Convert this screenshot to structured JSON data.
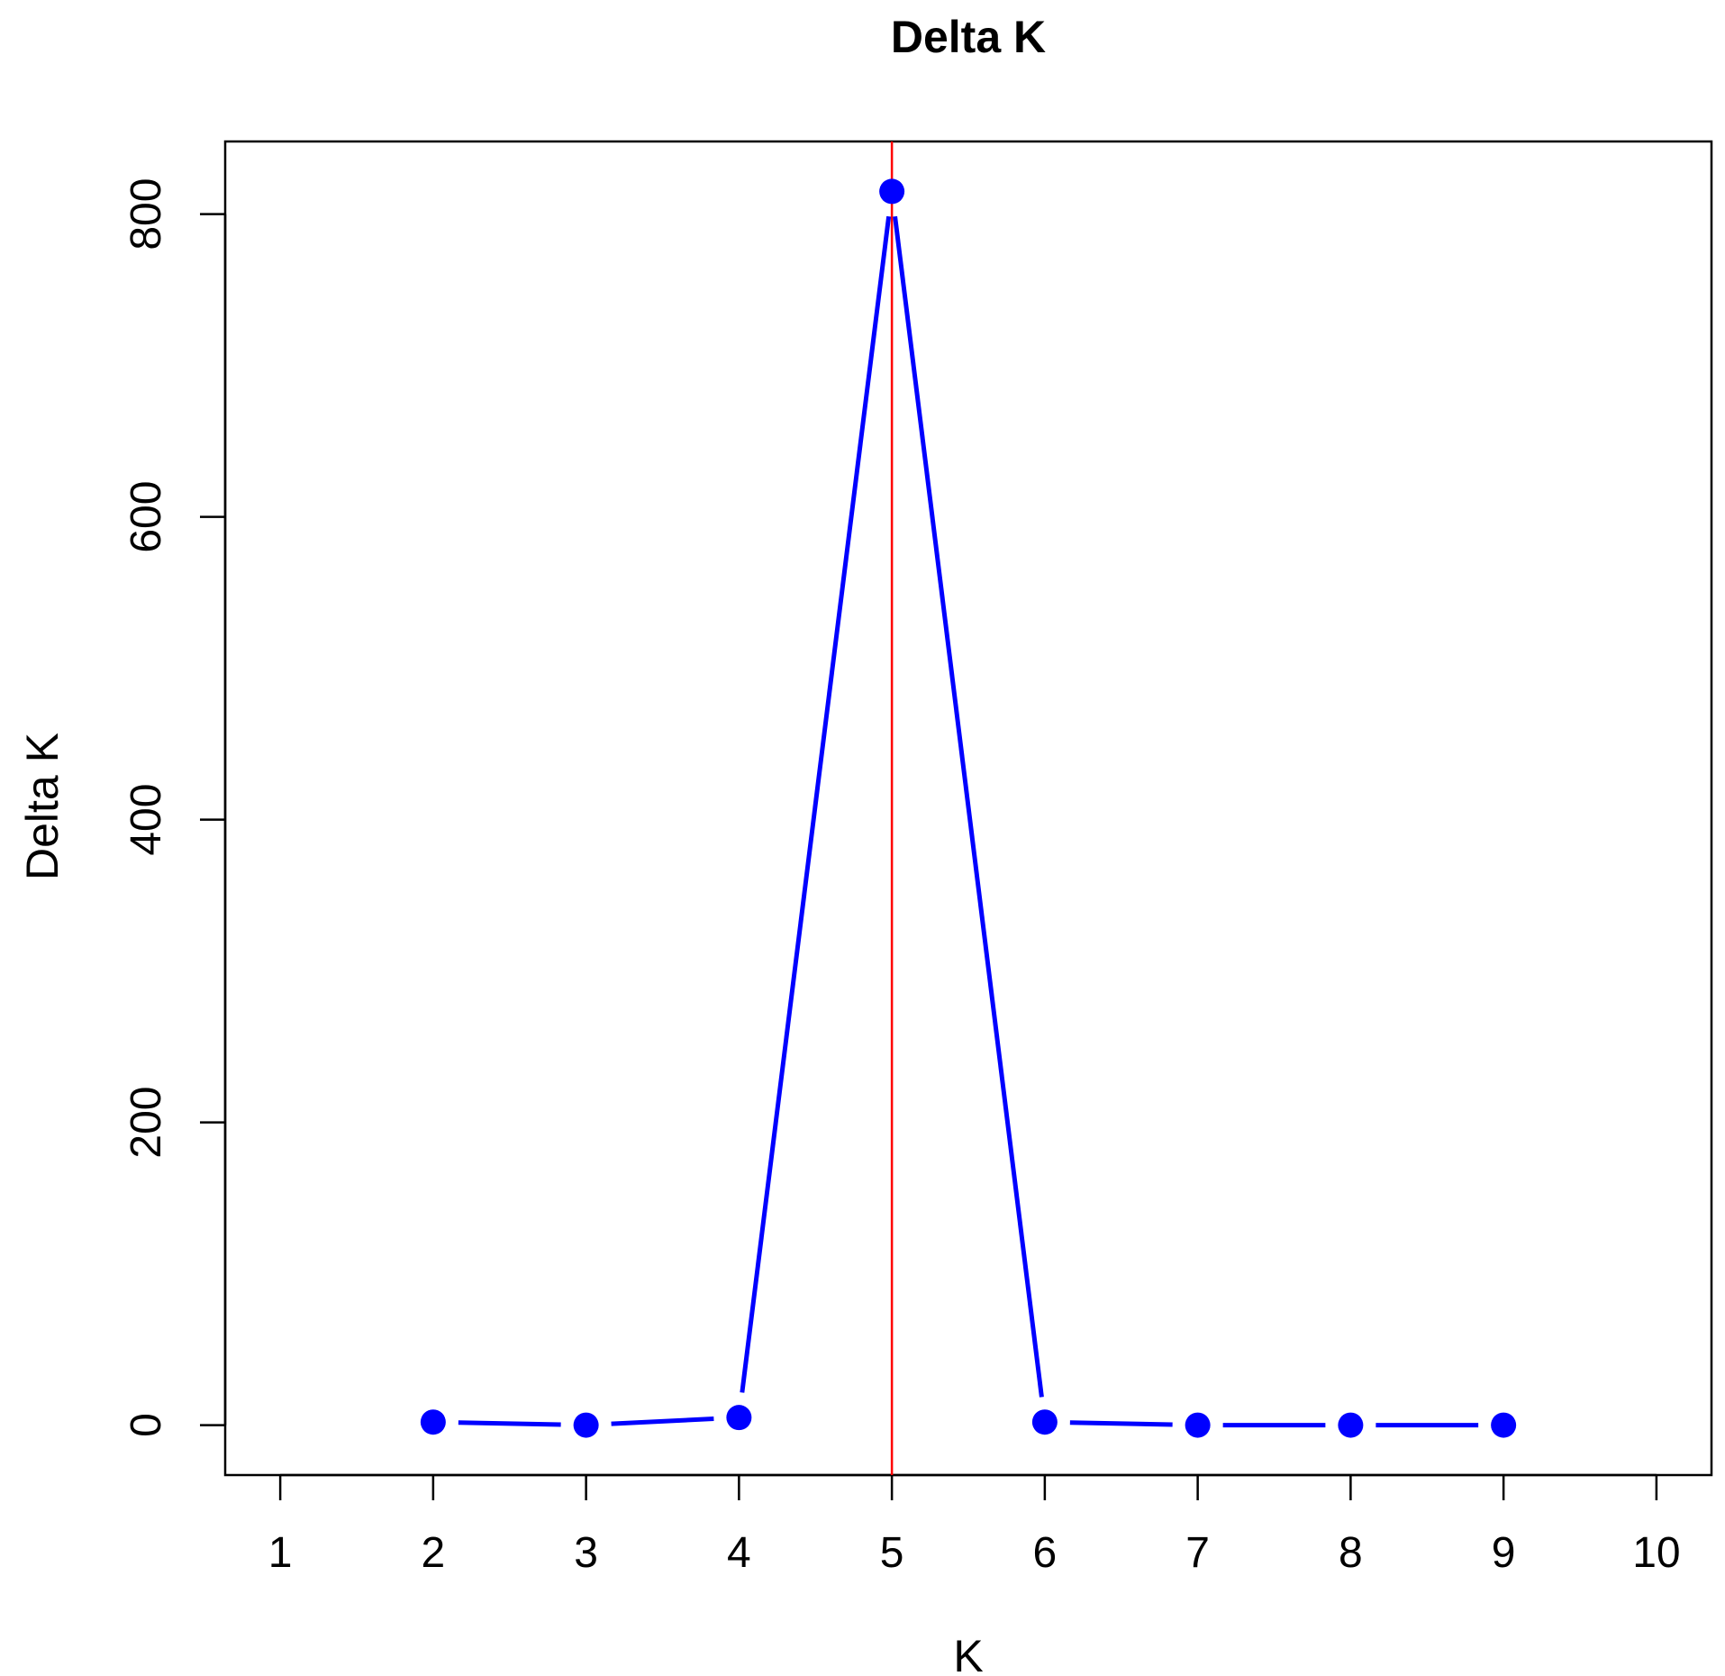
{
  "chart_data": {
    "type": "line",
    "title": "Delta K",
    "xlabel": "K",
    "ylabel": "Delta K",
    "x": [
      2,
      3,
      4,
      5,
      6,
      7,
      8,
      9
    ],
    "series": [
      {
        "values": [
          2,
          0,
          5,
          815,
          2,
          0,
          0,
          0
        ],
        "color": "#0000ff"
      }
    ],
    "xlim": [
      0.64,
      10.36
    ],
    "ylim": [
      -33,
      848
    ],
    "xticks": [
      "1",
      "2",
      "3",
      "4",
      "5",
      "6",
      "7",
      "8",
      "9",
      "10"
    ],
    "yticks": [
      "0",
      "200",
      "400",
      "600",
      "800"
    ],
    "vline": {
      "x": 5,
      "color": "#ff0000"
    },
    "grid": false
  }
}
